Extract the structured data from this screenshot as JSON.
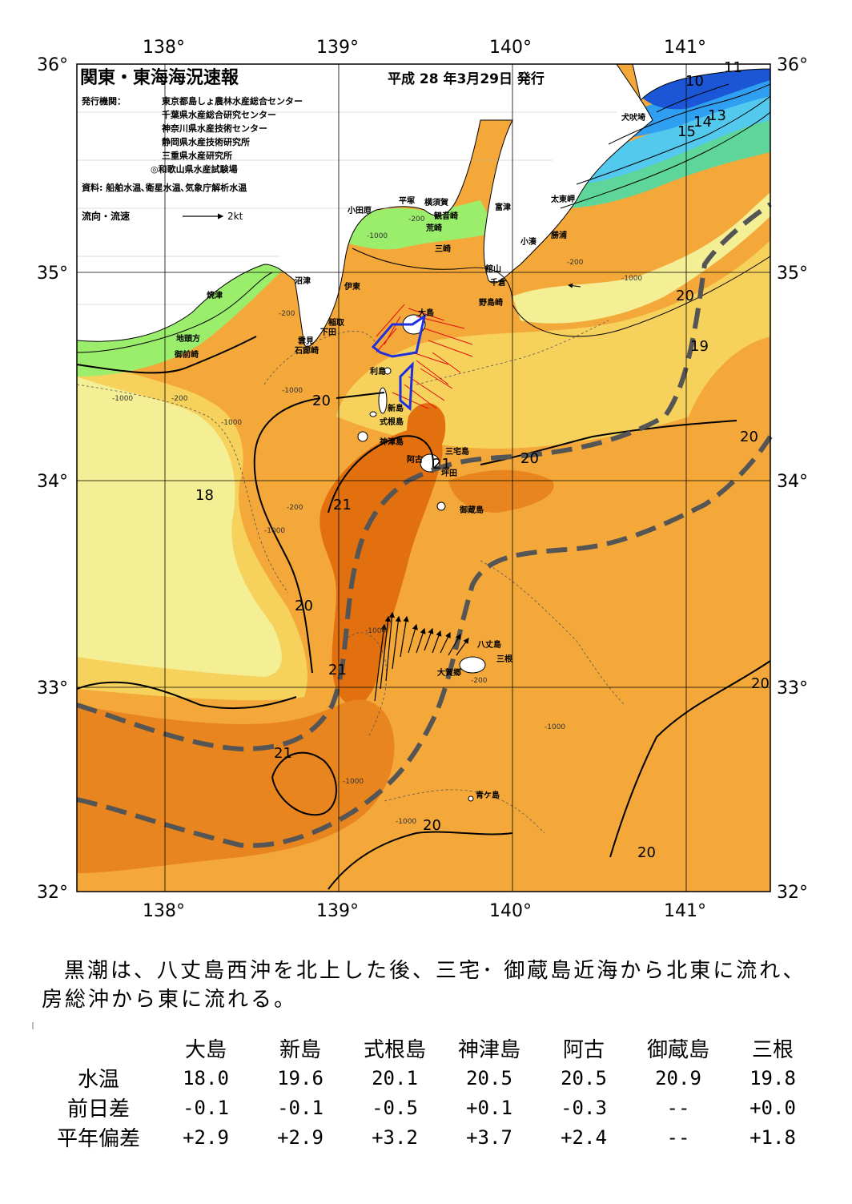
{
  "header": {
    "title": "関東・東海海況速報",
    "date": "平成 28 年3月29日 発行",
    "issuer_label": "発行機関：",
    "issuers": [
      "東京都島しょ農林水産総合センター",
      "千葉県水産総合研究センター",
      "神奈川県水産技術センター",
      "静岡県水産技術研究所",
      "三重県水産研究所",
      "◎和歌山県水産試験場"
    ],
    "source": "資料: 船舶水温､衛星水温､気象庁解析水温",
    "legend": {
      "label": "流向・流速",
      "scale": "2kt"
    }
  },
  "axes": {
    "lon_labels": [
      "138°",
      "139°",
      "140°",
      "141°"
    ],
    "lat_labels": [
      "36°",
      "35°",
      "34°",
      "33°",
      "32°"
    ]
  },
  "places": {
    "odawara": "小田原",
    "hiratsuka": "平塚",
    "yokosuka": "横須賀",
    "kannonzaki": "観音崎",
    "futtsu": "富津",
    "arasaki": "荒崎",
    "misaki": "三崎",
    "tateyama": "館山",
    "chikura": "千倉",
    "nojimazaki": "野島崎",
    "kominato": "小湊",
    "katsuura": "勝浦",
    "taitomisaki": "太東岬",
    "inubosaki": "犬吠埼",
    "numazu": "沼津",
    "ito": "伊東",
    "yaizu": "焼津",
    "inatori": "稲取",
    "shimoda": "下田",
    "kumomi": "雲見",
    "irozaki": "石廊崎",
    "jitogata": "地頭方",
    "omaezaki": "御前崎",
    "oshima": "大島",
    "toshima": "利島",
    "niijima": "新島",
    "shikinejima": "式根島",
    "kozushima": "神津島",
    "miyakejima": "三宅島",
    "ako": "阿古",
    "tsubota": "坪田",
    "mikurajima": "御蔵島",
    "hachijojima": "八丈島",
    "mitsune": "三根",
    "okago": "大賀郷",
    "aogashima": "青ケ島"
  },
  "isotherms": {
    "t10": "10",
    "t11": "11",
    "t13": "13",
    "t14": "14",
    "t15": "15",
    "t18": "18",
    "t19": "19",
    "t20": "20",
    "t21": "21"
  },
  "depths": {
    "d200": "-200",
    "d1000": "-1000"
  },
  "summary": "黒潮は、八丈島西沖を北上した後、三宅･ 御蔵島近海から北東に流れ、房総沖から東に流れる。",
  "stats": {
    "stations": [
      "大島",
      "新島",
      "式根島",
      "神津島",
      "阿古",
      "御蔵島",
      "三根"
    ],
    "rows": [
      {
        "label": "水温",
        "values": [
          "18.0",
          "19.6",
          "20.1",
          "20.5",
          "20.5",
          "20.9",
          "19.8"
        ]
      },
      {
        "label": "前日差",
        "values": [
          "-0.1",
          "-0.1",
          "-0.5",
          "+0.1",
          "-0.3",
          "--",
          "+0.0"
        ]
      },
      {
        "label": "平年偏差",
        "values": [
          "+2.9",
          "+2.9",
          "+3.2",
          "+3.7",
          "+2.4",
          "--",
          "+1.8"
        ]
      }
    ]
  },
  "colors": {
    "sst_10_11": "#1a56d6",
    "sst_12_13": "#2f9ff2",
    "sst_14_15": "#54c9ee",
    "sst_16": "#5ed69a",
    "sst_17": "#9bee6c",
    "sst_18": "#f4ee94",
    "sst_19": "#f6d25c",
    "sst_20": "#f4a83a",
    "sst_21": "#e2700e",
    "land": "#ffffff",
    "kuroshio_axis": "#555555"
  }
}
